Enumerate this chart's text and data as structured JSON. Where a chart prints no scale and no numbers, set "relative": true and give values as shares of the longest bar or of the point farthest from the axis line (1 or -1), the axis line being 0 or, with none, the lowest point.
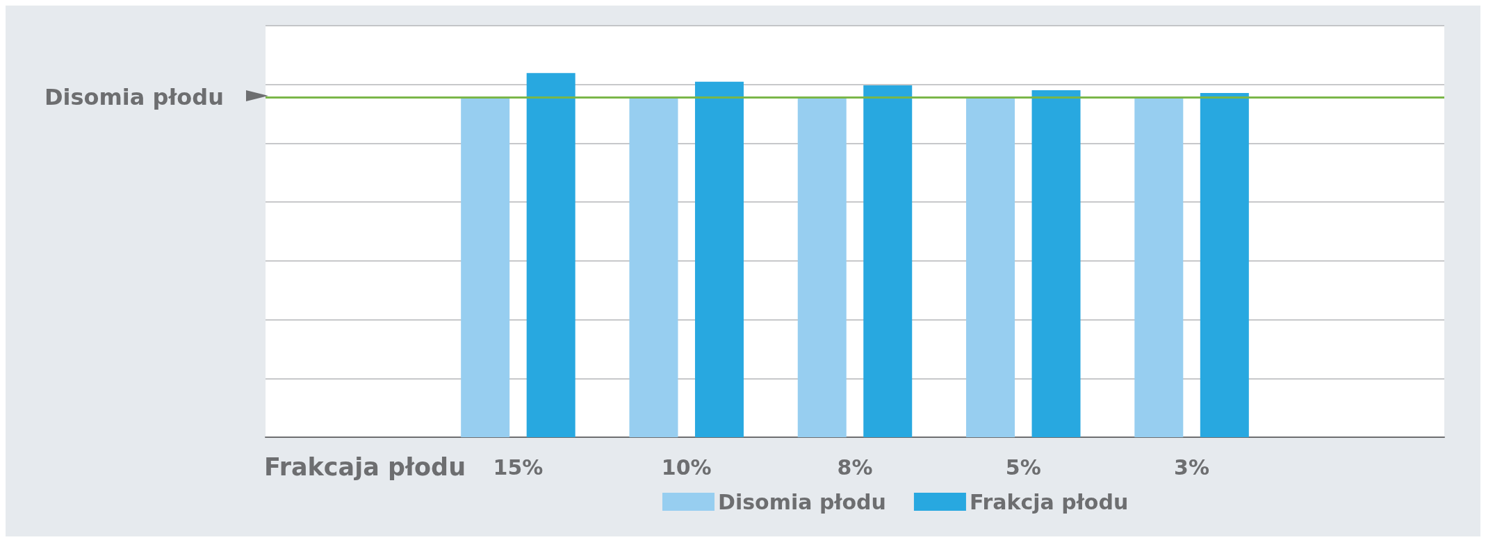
{
  "chart_data": {
    "type": "bar",
    "relative": true,
    "xlabel": "Frakcaja płodu",
    "categories": [
      null,
      "15%",
      "10%",
      "8%",
      "5%",
      "3%",
      null
    ],
    "series": [
      {
        "name": "Disomia płodu",
        "color": "#97cef0",
        "values": [
          null,
          0.934,
          0.934,
          0.934,
          0.934,
          0.934,
          null
        ]
      },
      {
        "name": "Frakcja płodu",
        "color": "#28a8e0",
        "values": [
          null,
          1,
          0.976,
          0.966,
          0.953,
          0.945,
          null
        ]
      }
    ],
    "ref_lines": [
      {
        "axis": "y",
        "value": 0.934,
        "label": "Disomia płodu",
        "color": "#7ab648"
      }
    ],
    "grid": "y",
    "legend": "bottom",
    "tick_labels": "x"
  }
}
